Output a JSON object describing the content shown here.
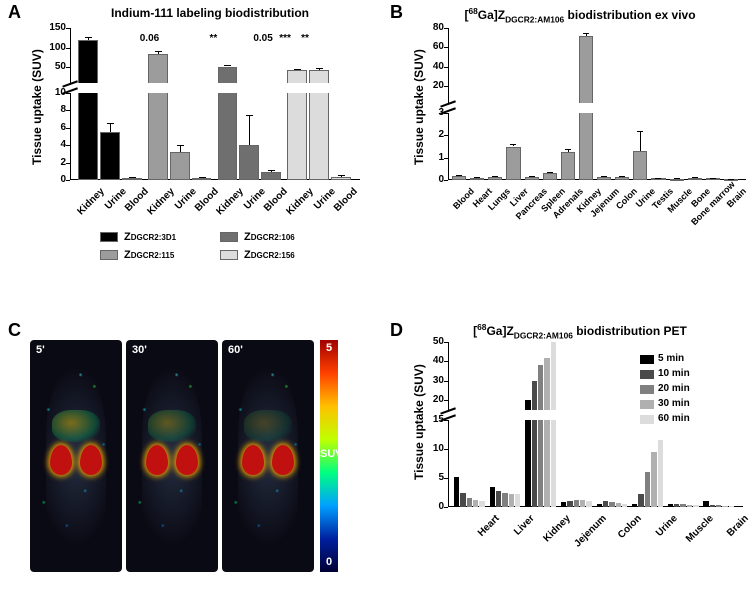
{
  "panels": {
    "A": "A",
    "B": "B",
    "C": "C",
    "D": "D"
  },
  "A": {
    "title": "Indium-111 labeling biodistribution",
    "ylabel": "Tissue uptake (SUV)",
    "y_break_low_max": 10,
    "y_break_high_min": 10,
    "y_max": 150,
    "y_ticks_low": [
      0,
      2,
      4,
      6,
      8,
      10
    ],
    "y_ticks_high": [
      50,
      100,
      150
    ],
    "x_labels": [
      "Kidney",
      "Urine",
      "Blood",
      "Kidney",
      "Urine",
      "Blood",
      "Kidney",
      "Urine",
      "Blood",
      "Kidney",
      "Urine",
      "Blood"
    ],
    "groups": [
      {
        "color": "#000000",
        "values": [
          120,
          5.5,
          0.2
        ],
        "err": [
          8,
          1,
          0.1
        ]
      },
      {
        "color": "#9c9c9c",
        "values": [
          85,
          3.2,
          0.2
        ],
        "err": [
          6,
          0.8,
          0.1
        ]
      },
      {
        "color": "#6f6f6f",
        "values": [
          52,
          4.0,
          0.9
        ],
        "err": [
          5,
          3.5,
          0.3
        ]
      },
      {
        "color": "#dcdcdc",
        "values": [
          42,
          42,
          0.4
        ],
        "err": [
          4,
          5,
          0.2
        ]
      }
    ],
    "annotations": [
      {
        "x_index": 3,
        "text": "0.06"
      },
      {
        "x_index": 6,
        "text": "**"
      },
      {
        "x_index": 8,
        "text": "0.05"
      },
      {
        "x_index": 9,
        "text": "***"
      },
      {
        "x_index": 10,
        "text": "**"
      }
    ],
    "legend": [
      {
        "color": "#000000",
        "label": "Z",
        "sub": "DGCR2:3D1"
      },
      {
        "color": "#6f6f6f",
        "label": "Z",
        "sub": "DGCR2:106"
      },
      {
        "color": "#9c9c9c",
        "label": "Z",
        "sub": "DGCR2:115"
      },
      {
        "color": "#dcdcdc",
        "label": "Z",
        "sub": "DGCR2:156"
      }
    ]
  },
  "B": {
    "title_prefix": "[",
    "title_sup": "68",
    "title_mid": "Ga]Z",
    "title_sub": "DGCR2:AM106",
    "title_suffix": " biodistribution ex vivo",
    "ylabel": "Tissue uptake (SUV)",
    "y_break_low_max": 3,
    "y_max": 80,
    "y_ticks_low": [
      0,
      1,
      2,
      3
    ],
    "y_ticks_high": [
      20,
      40,
      60,
      80
    ],
    "bar_color": "#9c9c9c",
    "x_labels": [
      "Blood",
      "Heart",
      "Lungs",
      "Liver",
      "Pancreas",
      "Spleen",
      "Adrenals",
      "Kidney",
      "Jejenum",
      "Colon",
      "Urine",
      "Testis",
      "Muscle",
      "Bone",
      "Bone marrow",
      "Brain"
    ],
    "values": [
      0.18,
      0.1,
      0.12,
      1.5,
      0.12,
      0.3,
      1.25,
      72,
      0.15,
      0.12,
      1.3,
      0.08,
      0.05,
      0.1,
      0.08,
      0.03
    ],
    "err": [
      0.05,
      0.03,
      0.04,
      0.12,
      0.04,
      0.08,
      0.15,
      3,
      0.05,
      0.04,
      0.9,
      0.03,
      0.02,
      0.03,
      0.03,
      0.01
    ]
  },
  "C": {
    "times": [
      "5'",
      "30'",
      "60'"
    ],
    "colorbar_top": "5",
    "colorbar_mid": "SUV",
    "colorbar_bottom": "0"
  },
  "D": {
    "title_prefix": "[",
    "title_sup": "68",
    "title_mid": "Ga]Z",
    "title_sub": "DGCR2:AM106",
    "title_suffix": " biodistribution PET",
    "ylabel": "Tissue uptake (SUV)",
    "y_break_low_max": 15,
    "y_max": 50,
    "y_ticks_low": [
      0,
      5,
      10,
      15
    ],
    "y_ticks_high": [
      20,
      30,
      40,
      50
    ],
    "x_labels": [
      "Heart",
      "Liver",
      "Kidney",
      "Jejenum",
      "Colon",
      "Urine",
      "Muscle",
      "Brain"
    ],
    "legend": [
      {
        "color": "#000000",
        "label": "5 min"
      },
      {
        "color": "#4a4a4a",
        "label": "10 min"
      },
      {
        "color": "#808080",
        "label": "20 min"
      },
      {
        "color": "#b0b0b0",
        "label": "30 min"
      },
      {
        "color": "#dcdcdc",
        "label": "60 min"
      }
    ],
    "series": [
      {
        "color": "#000000",
        "values": [
          5.2,
          3.5,
          20,
          0.8,
          0.5,
          0.6,
          0.6,
          1.0
        ]
      },
      {
        "color": "#4a4a4a",
        "values": [
          2.5,
          2.8,
          30,
          1.0,
          1.0,
          2.2,
          0.5,
          0.4
        ]
      },
      {
        "color": "#808080",
        "values": [
          1.5,
          2.5,
          38,
          1.2,
          0.9,
          6.0,
          0.5,
          0.3
        ]
      },
      {
        "color": "#b0b0b0",
        "values": [
          1.2,
          2.3,
          42,
          1.2,
          0.7,
          9.5,
          0.4,
          0.2
        ]
      },
      {
        "color": "#dcdcdc",
        "values": [
          1.0,
          2.2,
          50,
          1.0,
          0.5,
          11.5,
          0.3,
          0.2
        ]
      }
    ]
  }
}
